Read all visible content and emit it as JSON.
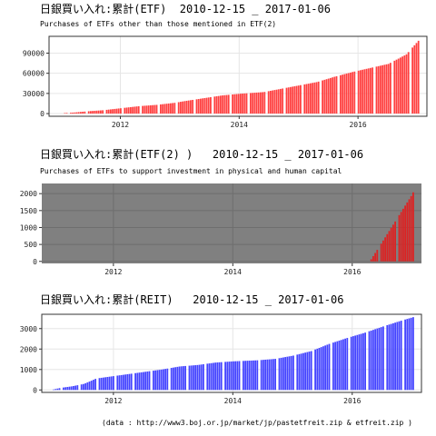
{
  "footer": "(data : http://www3.boj.or.jp/market/jp/pastetfreit.zip & etfreit.zip )",
  "chart_data": [
    {
      "type": "bar",
      "title": "日銀買い入れ:累計(ETF)  2010-12-15 _ 2017-01-06",
      "subtitle": "Purchases of ETFs other than those mentioned in ETF(2)",
      "x_range": [
        2010.8,
        2017.16
      ],
      "ylim": [
        -4000,
        115000
      ],
      "yticks": [
        0,
        30000,
        60000,
        90000
      ],
      "xticks": [
        2012,
        2014,
        2016
      ],
      "grid": true,
      "background": "#ffffff",
      "color": "#ff4040",
      "points": [
        [
          2010.96,
          300
        ],
        [
          2011.2,
          1500
        ],
        [
          2011.45,
          3500
        ],
        [
          2011.7,
          5000
        ],
        [
          2012.0,
          8000
        ],
        [
          2012.3,
          11000
        ],
        [
          2012.6,
          13000
        ],
        [
          2012.9,
          16000
        ],
        [
          2013.1,
          19000
        ],
        [
          2013.4,
          23000
        ],
        [
          2013.7,
          27000
        ],
        [
          2014.0,
          29500
        ],
        [
          2014.4,
          32000
        ],
        [
          2014.7,
          37000
        ],
        [
          2015.0,
          42000
        ],
        [
          2015.3,
          47000
        ],
        [
          2015.6,
          55000
        ],
        [
          2015.9,
          62000
        ],
        [
          2016.2,
          68000
        ],
        [
          2016.5,
          74000
        ],
        [
          2016.8,
          88000
        ],
        [
          2017.0,
          108000
        ],
        [
          2017.02,
          110000
        ]
      ]
    },
    {
      "type": "bar",
      "title": "日銀買い入れ:累計(ETF(2) )   2010-12-15 _ 2017-01-06",
      "subtitle": "Purchases of ETFs to support investment in physical and human capital",
      "x_range": [
        2010.8,
        2017.16
      ],
      "ylim": [
        -60,
        2300
      ],
      "yticks": [
        0,
        500,
        1000,
        1500,
        2000
      ],
      "xticks": [
        2012,
        2014,
        2016
      ],
      "grid": true,
      "background": "#808080",
      "color": "#dd2222",
      "points": [
        [
          2016.3,
          50
        ],
        [
          2016.5,
          600
        ],
        [
          2016.75,
          1300
        ],
        [
          2017.0,
          2000
        ],
        [
          2017.02,
          2100
        ]
      ]
    },
    {
      "type": "bar",
      "title": "日銀買い入れ:累計(REIT)   2010-12-15 _ 2017-01-06",
      "subtitle": "",
      "x_range": [
        2010.8,
        2017.16
      ],
      "ylim": [
        -120,
        3700
      ],
      "yticks": [
        0,
        1000,
        2000,
        3000
      ],
      "xticks": [
        2012,
        2014,
        2016
      ],
      "grid": true,
      "background": "#ffffff",
      "color": "#4444ff",
      "points": [
        [
          2010.96,
          10
        ],
        [
          2011.1,
          100
        ],
        [
          2011.3,
          180
        ],
        [
          2011.5,
          300
        ],
        [
          2011.7,
          560
        ],
        [
          2011.9,
          640
        ],
        [
          2012.2,
          760
        ],
        [
          2012.5,
          880
        ],
        [
          2012.8,
          1000
        ],
        [
          2013.1,
          1150
        ],
        [
          2013.4,
          1220
        ],
        [
          2013.7,
          1340
        ],
        [
          2014.0,
          1400
        ],
        [
          2014.4,
          1450
        ],
        [
          2014.7,
          1520
        ],
        [
          2015.0,
          1680
        ],
        [
          2015.3,
          1900
        ],
        [
          2015.6,
          2250
        ],
        [
          2015.9,
          2540
        ],
        [
          2016.2,
          2800
        ],
        [
          2016.5,
          3100
        ],
        [
          2016.8,
          3380
        ],
        [
          2017.02,
          3570
        ]
      ]
    }
  ]
}
